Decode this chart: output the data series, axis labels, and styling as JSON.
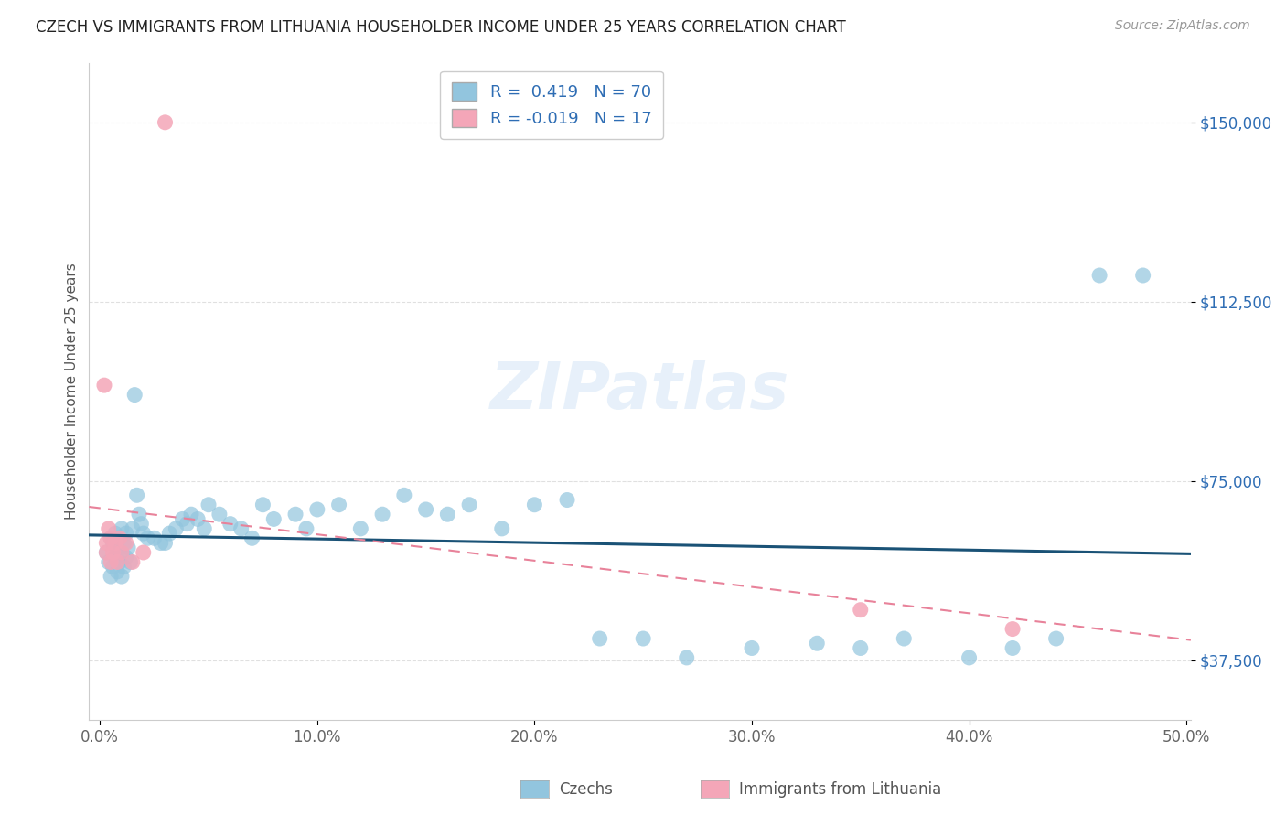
{
  "title": "CZECH VS IMMIGRANTS FROM LITHUANIA HOUSEHOLDER INCOME UNDER 25 YEARS CORRELATION CHART",
  "source": "Source: ZipAtlas.com",
  "ylabel": "Householder Income Under 25 years",
  "xlim_min": -0.005,
  "xlim_max": 0.502,
  "ylim_min": 25000,
  "ylim_max": 162500,
  "yticks": [
    37500,
    75000,
    112500,
    150000
  ],
  "ytick_labels": [
    "$37,500",
    "$75,000",
    "$112,500",
    "$150,000"
  ],
  "xticks": [
    0.0,
    0.1,
    0.2,
    0.3,
    0.4,
    0.5
  ],
  "xtick_labels": [
    "0.0%",
    "10.0%",
    "20.0%",
    "30.0%",
    "40.0%",
    "50.0%"
  ],
  "czech_R": 0.419,
  "czech_N": 70,
  "lithuania_R": -0.019,
  "lithuania_N": 17,
  "czech_color": "#92c5de",
  "lithuania_color": "#f4a6b8",
  "czech_line_color": "#1a5276",
  "lithuania_line_color": "#e8829a",
  "watermark": "ZIPatlas",
  "background_color": "#ffffff",
  "grid_color": "#e0e0e0",
  "title_color": "#222222",
  "source_color": "#999999",
  "yaxis_color": "#2e6db4",
  "xaxis_color": "#666666",
  "czech_x": [
    0.003,
    0.004,
    0.005,
    0.005,
    0.006,
    0.006,
    0.007,
    0.007,
    0.008,
    0.008,
    0.009,
    0.009,
    0.01,
    0.01,
    0.01,
    0.011,
    0.011,
    0.012,
    0.012,
    0.013,
    0.014,
    0.015,
    0.016,
    0.017,
    0.018,
    0.019,
    0.02,
    0.022,
    0.025,
    0.028,
    0.03,
    0.032,
    0.035,
    0.038,
    0.04,
    0.042,
    0.045,
    0.048,
    0.05,
    0.055,
    0.06,
    0.065,
    0.07,
    0.075,
    0.08,
    0.09,
    0.095,
    0.1,
    0.11,
    0.12,
    0.13,
    0.14,
    0.15,
    0.16,
    0.17,
    0.185,
    0.2,
    0.215,
    0.23,
    0.25,
    0.27,
    0.3,
    0.33,
    0.35,
    0.37,
    0.4,
    0.42,
    0.44,
    0.46,
    0.48
  ],
  "czech_y": [
    60000,
    58000,
    55000,
    63000,
    57000,
    62000,
    59000,
    64000,
    56000,
    61000,
    58000,
    63000,
    55000,
    60000,
    65000,
    57000,
    62000,
    59000,
    64000,
    61000,
    58000,
    65000,
    93000,
    72000,
    68000,
    66000,
    64000,
    63000,
    63000,
    62000,
    62000,
    64000,
    65000,
    67000,
    66000,
    68000,
    67000,
    65000,
    70000,
    68000,
    66000,
    65000,
    63000,
    70000,
    67000,
    68000,
    65000,
    69000,
    70000,
    65000,
    68000,
    72000,
    69000,
    68000,
    70000,
    65000,
    70000,
    71000,
    42000,
    42000,
    38000,
    40000,
    41000,
    40000,
    42000,
    38000,
    40000,
    42000,
    118000,
    118000
  ],
  "lithuania_x": [
    0.002,
    0.003,
    0.003,
    0.004,
    0.005,
    0.005,
    0.006,
    0.007,
    0.008,
    0.009,
    0.01,
    0.012,
    0.015,
    0.02,
    0.03,
    0.35,
    0.42
  ],
  "lithuania_y": [
    95000,
    62000,
    60000,
    65000,
    58000,
    63000,
    60000,
    62000,
    58000,
    63000,
    60000,
    62000,
    58000,
    60000,
    150000,
    48000,
    44000
  ]
}
